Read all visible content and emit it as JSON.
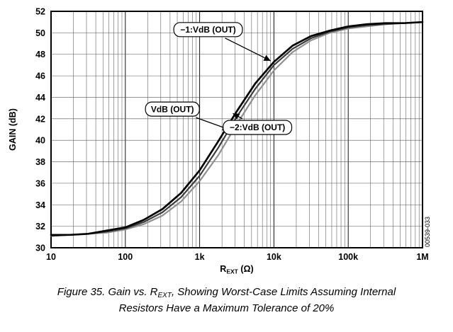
{
  "figure": {
    "side_code": "00539-033",
    "caption": {
      "line1_pre": "Figure 35. Gain vs. R",
      "line1_sub": "EXT",
      "line1_post": ", Showing Worst-Case Limits Assuming Internal",
      "line2": "Resistors Have a Maximum Tolerance of 20%"
    }
  },
  "chart_data": {
    "type": "line",
    "title": "",
    "ylabel": "GAIN (dB)",
    "xlabel_pre": "R",
    "xlabel_sub": "EXT",
    "xlabel_post": " (Ω)",
    "x_scale": "log",
    "xlim": [
      10,
      1000000
    ],
    "ylim": [
      30,
      52
    ],
    "y_tick_step": 2,
    "x_ticks": [
      10,
      100,
      1000,
      10000,
      100000,
      1000000
    ],
    "x_tick_labels": [
      "10",
      "100",
      "1k",
      "10k",
      "100k",
      "1M"
    ],
    "grid": "log minor vertical lines, horizontal every 2 dB",
    "x": [
      10,
      17.8,
      31.6,
      56.2,
      100,
      178,
      316,
      562,
      1000,
      1780,
      3160,
      5620,
      10000,
      17800,
      31600,
      56200,
      100000,
      178000,
      316000,
      562000,
      1000000
    ],
    "series": [
      {
        "name": "−2:VdB (OUT)",
        "color": "#909090",
        "width": 2.2,
        "values": [
          31.1,
          31.2,
          31.3,
          31.4,
          31.7,
          32.2,
          33.0,
          34.3,
          36.2,
          38.6,
          41.5,
          44.2,
          46.5,
          48.2,
          49.3,
          50.0,
          50.4,
          50.6,
          50.8,
          50.9,
          51.0
        ]
      },
      {
        "name": "VdB (OUT)",
        "color": "#3c3c3c",
        "width": 2.2,
        "values": [
          31.1,
          31.2,
          31.3,
          31.5,
          31.8,
          32.4,
          33.3,
          34.7,
          36.7,
          39.3,
          42.2,
          44.8,
          47.0,
          48.5,
          49.5,
          50.1,
          50.5,
          50.7,
          50.8,
          50.9,
          51.0
        ]
      },
      {
        "name": "−1:VdB (OUT)",
        "color": "#000000",
        "width": 2.7,
        "values": [
          31.2,
          31.2,
          31.3,
          31.6,
          31.9,
          32.6,
          33.6,
          35.1,
          37.2,
          39.9,
          42.7,
          45.3,
          47.3,
          48.8,
          49.7,
          50.2,
          50.6,
          50.8,
          50.9,
          50.9,
          51.0
        ]
      }
    ],
    "annotations": [
      {
        "label": "−1:VdB (OUT)",
        "label_x": 1300,
        "label_y": 50.3,
        "target_x": 9000,
        "target_y": 47.4
      },
      {
        "label": "VdB (OUT)",
        "label_x": 430,
        "label_y": 42.9,
        "target_x": 2500,
        "target_y": 41.0
      },
      {
        "label": "−2:VdB (OUT)",
        "label_x": 6000,
        "label_y": 41.2,
        "target_x": 2800,
        "target_y": 42.5
      }
    ]
  }
}
